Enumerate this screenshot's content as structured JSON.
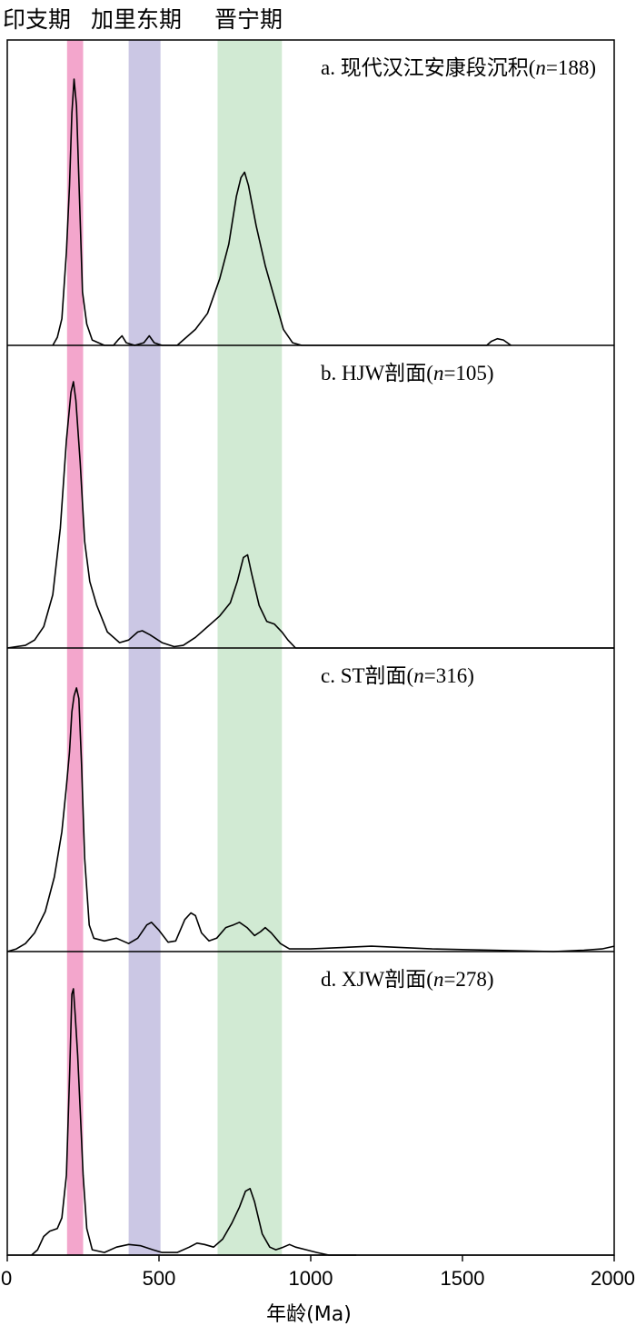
{
  "chart_data": {
    "type": "line",
    "xlabel": "年龄(Ma)",
    "xlim": [
      0,
      2000
    ],
    "xticks": [
      0,
      500,
      1000,
      1500,
      2000
    ],
    "grid": false,
    "bands": [
      {
        "label": "印支期",
        "from": 197,
        "to": 250,
        "color": "#f3a6cc"
      },
      {
        "label": "加里东期",
        "from": 400,
        "to": 505,
        "color": "#cbc7e4"
      },
      {
        "label": "晋宁期",
        "from": 693,
        "to": 905,
        "color": "#d1ead3"
      }
    ],
    "panels": [
      {
        "prefix": "a. 现代汉江安康段沉积(",
        "italic": "n",
        "suffix": "=188)",
        "points": [
          [
            150,
            0
          ],
          [
            165,
            0.03
          ],
          [
            180,
            0.1
          ],
          [
            195,
            0.35
          ],
          [
            205,
            0.6
          ],
          [
            213,
            0.87
          ],
          [
            220,
            1.0
          ],
          [
            228,
            0.9
          ],
          [
            238,
            0.55
          ],
          [
            248,
            0.2
          ],
          [
            262,
            0.08
          ],
          [
            280,
            0.02
          ],
          [
            320,
            0
          ],
          [
            350,
            0
          ],
          [
            365,
            0.02
          ],
          [
            378,
            0.036
          ],
          [
            392,
            0.01
          ],
          [
            420,
            0
          ],
          [
            450,
            0.01
          ],
          [
            468,
            0.036
          ],
          [
            484,
            0.01
          ],
          [
            510,
            0
          ],
          [
            560,
            0
          ],
          [
            580,
            0.02
          ],
          [
            620,
            0.06
          ],
          [
            660,
            0.12
          ],
          [
            700,
            0.25
          ],
          [
            730,
            0.38
          ],
          [
            755,
            0.56
          ],
          [
            770,
            0.63
          ],
          [
            782,
            0.65
          ],
          [
            795,
            0.6
          ],
          [
            820,
            0.45
          ],
          [
            850,
            0.3
          ],
          [
            880,
            0.18
          ],
          [
            910,
            0.06
          ],
          [
            940,
            0.01
          ],
          [
            970,
            0
          ],
          [
            1580,
            0
          ],
          [
            1595,
            0.015
          ],
          [
            1615,
            0.025
          ],
          [
            1635,
            0.02
          ],
          [
            1660,
            0
          ]
        ]
      },
      {
        "prefix": "b. HJW剖面(",
        "italic": "n",
        "suffix": "=105)",
        "points": [
          [
            0,
            0
          ],
          [
            30,
            0.005
          ],
          [
            60,
            0.01
          ],
          [
            90,
            0.03
          ],
          [
            120,
            0.08
          ],
          [
            150,
            0.2
          ],
          [
            175,
            0.45
          ],
          [
            195,
            0.78
          ],
          [
            210,
            0.96
          ],
          [
            218,
            1.0
          ],
          [
            226,
            0.93
          ],
          [
            240,
            0.7
          ],
          [
            255,
            0.4
          ],
          [
            272,
            0.25
          ],
          [
            295,
            0.16
          ],
          [
            330,
            0.06
          ],
          [
            370,
            0.02
          ],
          [
            400,
            0.03
          ],
          [
            430,
            0.06
          ],
          [
            445,
            0.065
          ],
          [
            470,
            0.05
          ],
          [
            510,
            0.02
          ],
          [
            550,
            0.005
          ],
          [
            580,
            0.01
          ],
          [
            620,
            0.04
          ],
          [
            660,
            0.08
          ],
          [
            700,
            0.12
          ],
          [
            735,
            0.17
          ],
          [
            758,
            0.25
          ],
          [
            778,
            0.34
          ],
          [
            792,
            0.35
          ],
          [
            805,
            0.28
          ],
          [
            830,
            0.16
          ],
          [
            855,
            0.1
          ],
          [
            880,
            0.09
          ],
          [
            905,
            0.06
          ],
          [
            925,
            0.03
          ],
          [
            950,
            0
          ],
          [
            2000,
            0
          ]
        ]
      },
      {
        "prefix": "c. ST剖面(",
        "italic": "n",
        "suffix": "=316)",
        "points": [
          [
            0,
            0
          ],
          [
            30,
            0.01
          ],
          [
            60,
            0.03
          ],
          [
            90,
            0.07
          ],
          [
            125,
            0.15
          ],
          [
            155,
            0.28
          ],
          [
            180,
            0.45
          ],
          [
            195,
            0.62
          ],
          [
            205,
            0.75
          ],
          [
            213,
            0.9
          ],
          [
            220,
            0.96
          ],
          [
            228,
            0.99
          ],
          [
            236,
            0.95
          ],
          [
            245,
            0.7
          ],
          [
            255,
            0.35
          ],
          [
            270,
            0.1
          ],
          [
            285,
            0.05
          ],
          [
            320,
            0.04
          ],
          [
            360,
            0.05
          ],
          [
            400,
            0.03
          ],
          [
            430,
            0.05
          ],
          [
            460,
            0.1
          ],
          [
            475,
            0.11
          ],
          [
            500,
            0.08
          ],
          [
            530,
            0.035
          ],
          [
            555,
            0.04
          ],
          [
            585,
            0.12
          ],
          [
            605,
            0.145
          ],
          [
            620,
            0.135
          ],
          [
            640,
            0.07
          ],
          [
            665,
            0.04
          ],
          [
            690,
            0.05
          ],
          [
            720,
            0.09
          ],
          [
            745,
            0.1
          ],
          [
            765,
            0.11
          ],
          [
            790,
            0.09
          ],
          [
            815,
            0.06
          ],
          [
            835,
            0.075
          ],
          [
            850,
            0.09
          ],
          [
            870,
            0.07
          ],
          [
            900,
            0.03
          ],
          [
            930,
            0.01
          ],
          [
            1000,
            0.01
          ],
          [
            1200,
            0.02
          ],
          [
            1400,
            0.01
          ],
          [
            1600,
            0.005
          ],
          [
            1800,
            0
          ],
          [
            1900,
            0.005
          ],
          [
            1960,
            0.01
          ],
          [
            2000,
            0.02
          ]
        ]
      },
      {
        "prefix": "d. XJW剖面(",
        "italic": "n",
        "suffix": "=278)",
        "points": [
          [
            80,
            0
          ],
          [
            100,
            0.02
          ],
          [
            120,
            0.07
          ],
          [
            140,
            0.09
          ],
          [
            165,
            0.1
          ],
          [
            180,
            0.14
          ],
          [
            195,
            0.3
          ],
          [
            206,
            0.7
          ],
          [
            213,
            0.98
          ],
          [
            218,
            1.0
          ],
          [
            224,
            0.9
          ],
          [
            232,
            0.75
          ],
          [
            240,
            0.55
          ],
          [
            250,
            0.3
          ],
          [
            262,
            0.1
          ],
          [
            280,
            0.02
          ],
          [
            320,
            0.01
          ],
          [
            360,
            0.03
          ],
          [
            400,
            0.04
          ],
          [
            440,
            0.035
          ],
          [
            480,
            0.02
          ],
          [
            510,
            0.01
          ],
          [
            560,
            0.01
          ],
          [
            600,
            0.03
          ],
          [
            625,
            0.045
          ],
          [
            650,
            0.04
          ],
          [
            680,
            0.03
          ],
          [
            710,
            0.06
          ],
          [
            740,
            0.12
          ],
          [
            765,
            0.18
          ],
          [
            785,
            0.24
          ],
          [
            800,
            0.25
          ],
          [
            815,
            0.2
          ],
          [
            840,
            0.08
          ],
          [
            865,
            0.03
          ],
          [
            885,
            0.02
          ],
          [
            910,
            0.03
          ],
          [
            930,
            0.04
          ],
          [
            950,
            0.03
          ],
          [
            985,
            0.02
          ],
          [
            1020,
            0.01
          ],
          [
            1060,
            0
          ],
          [
            1150,
            0
          ]
        ]
      }
    ]
  }
}
